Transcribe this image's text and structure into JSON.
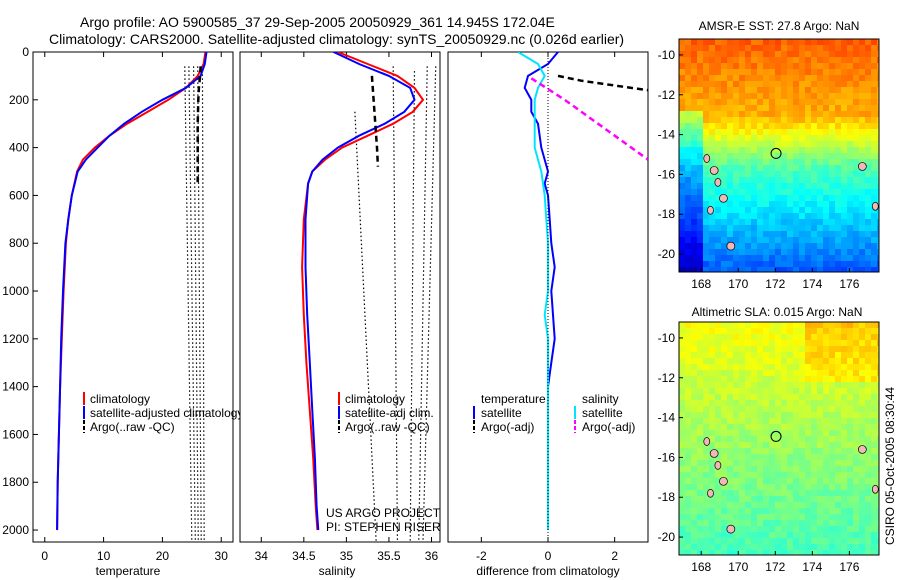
{
  "header": {
    "line1": "Argo profile: AO 5900585_37 29-Sep-2005 20050929_361 14.945S 172.04E",
    "line2": "Climatology: CARS2000. Satellite-adjusted climatology: synTS_20050929.nc (0.026d earlier)"
  },
  "side_stamp": "CSIRO 05-Oct-2005 08:30:44",
  "colors": {
    "climatology": "#ff0000",
    "satellite": "#0000ff",
    "argo": "#000000",
    "sat_salinity": "#00e5ff",
    "argo_salinity_adj": "#ff00ff"
  },
  "chart_data": [
    {
      "type": "line",
      "xlabel": "temperature",
      "ylabel": "",
      "xlim": [
        -2,
        32
      ],
      "ylim": [
        2050,
        0
      ],
      "x_ticks": [
        0,
        10,
        20,
        30
      ],
      "y_ticks": [
        0,
        200,
        400,
        600,
        800,
        1000,
        1200,
        1400,
        1600,
        1800,
        2000
      ],
      "legend": [
        "climatology",
        "satellite-adjusted climatology",
        "Argo(..raw -QC)"
      ],
      "legend_location": "lower-right",
      "series": [
        {
          "name": "climatology",
          "style": "solid",
          "color": "#ff0000",
          "x": [
            27.3,
            27.0,
            26.0,
            24.0,
            21.0,
            17.5,
            14.0,
            11.0,
            8.5,
            6.5,
            5.5,
            4.6,
            4.0,
            3.6,
            3.2,
            2.9,
            2.6,
            2.4,
            2.2,
            2.1
          ],
          "y": [
            0,
            50,
            100,
            150,
            200,
            250,
            300,
            350,
            400,
            450,
            500,
            600,
            700,
            800,
            1000,
            1200,
            1400,
            1600,
            1800,
            2000
          ]
        },
        {
          "name": "satellite-adjusted climatology",
          "style": "solid",
          "color": "#0000ff",
          "x": [
            27.5,
            27.2,
            26.5,
            24.0,
            20.0,
            16.5,
            13.5,
            11.0,
            9.0,
            7.0,
            5.6,
            4.6,
            4.0,
            3.5,
            3.1,
            2.8,
            2.6,
            2.4,
            2.2,
            2.1
          ],
          "y": [
            0,
            50,
            100,
            150,
            200,
            250,
            300,
            350,
            400,
            450,
            500,
            600,
            700,
            800,
            1000,
            1200,
            1400,
            1600,
            1800,
            2000
          ]
        },
        {
          "name": "Argo(..raw -QC)",
          "style": "dashed",
          "color": "#000000",
          "x": [
            26.5,
            26.4,
            26.2,
            26.1,
            26.0,
            26.0,
            26.0,
            26.0
          ],
          "y": [
            60,
            100,
            150,
            200,
            300,
            400,
            500,
            560
          ]
        }
      ],
      "dotted_reference_lines": [
        {
          "x1": 23.8,
          "y1": 60,
          "x2": 25.0,
          "y2": 2050
        },
        {
          "x1": 24.5,
          "y1": 60,
          "x2": 25.6,
          "y2": 2050
        },
        {
          "x1": 25.3,
          "y1": 60,
          "x2": 26.1,
          "y2": 2050
        },
        {
          "x1": 26.0,
          "y1": 60,
          "x2": 26.6,
          "y2": 2050
        },
        {
          "x1": 26.8,
          "y1": 60,
          "x2": 27.1,
          "y2": 2050
        }
      ]
    },
    {
      "type": "line",
      "xlabel": "salinity",
      "ylabel": "",
      "xlim": [
        33.75,
        36.1
      ],
      "ylim": [
        2050,
        0
      ],
      "x_ticks": [
        34,
        34.5,
        35,
        35.5,
        36
      ],
      "legend": [
        "climatology",
        "satellite-adj clim.",
        "Argo(..raw -QC)"
      ],
      "legend_location": "lower-right",
      "annotation": [
        "US ARGO PROJECT",
        "PI: STEPHEN RISER"
      ],
      "series": [
        {
          "name": "climatology",
          "style": "solid",
          "color": "#ff0000",
          "x": [
            34.9,
            35.25,
            35.6,
            35.8,
            35.9,
            35.78,
            35.55,
            35.25,
            34.95,
            34.75,
            34.6,
            34.55,
            34.5,
            34.48,
            34.5,
            34.53,
            34.57,
            34.61,
            34.64,
            34.66
          ],
          "y": [
            0,
            50,
            100,
            150,
            200,
            250,
            300,
            350,
            400,
            450,
            500,
            550,
            700,
            900,
            1100,
            1300,
            1500,
            1700,
            1900,
            2000
          ]
        },
        {
          "name": "satellite-adjusted climatology",
          "style": "solid",
          "color": "#0000ff",
          "x": [
            34.85,
            35.15,
            35.5,
            35.75,
            35.8,
            35.68,
            35.45,
            35.15,
            34.9,
            34.72,
            34.6,
            34.55,
            34.52,
            34.52,
            34.54,
            34.57,
            34.6,
            34.63,
            34.65,
            34.67
          ],
          "y": [
            0,
            50,
            100,
            150,
            200,
            250,
            300,
            350,
            400,
            450,
            500,
            550,
            700,
            900,
            1100,
            1300,
            1500,
            1700,
            1900,
            2000
          ]
        },
        {
          "name": "Argo(..raw -QC)",
          "style": "dashed",
          "color": "#000000",
          "x": [
            35.3,
            35.32,
            35.34,
            35.36,
            35.37
          ],
          "y": [
            100,
            200,
            300,
            400,
            480
          ]
        }
      ],
      "dotted_reference_lines": [
        {
          "x1": 35.55,
          "y1": 60,
          "x2": 35.6,
          "y2": 2050
        },
        {
          "x1": 35.1,
          "y1": 250,
          "x2": 35.35,
          "y2": 2050
        },
        {
          "x1": 35.8,
          "y1": 80,
          "x2": 35.75,
          "y2": 2050
        },
        {
          "x1": 35.95,
          "y1": 60,
          "x2": 35.85,
          "y2": 2050
        },
        {
          "x1": 36.05,
          "y1": 60,
          "x2": 35.9,
          "y2": 2050
        }
      ]
    },
    {
      "type": "line",
      "xlabel": "difference from climatology",
      "ylabel": "",
      "xlim": [
        -3.0,
        3.0
      ],
      "ylim": [
        2050,
        0
      ],
      "x_ticks": [
        -2,
        0,
        2
      ],
      "legend": [
        "temperature",
        "satellite",
        "Argo(-adj)",
        "salinity",
        "satellite",
        "Argo(-adj)"
      ],
      "legend_location": "lower",
      "series": [
        {
          "name": "temperature satellite",
          "style": "solid",
          "color": "#0000ff",
          "x": [
            0.3,
            0.0,
            -0.6,
            -0.7,
            -0.5,
            -0.5,
            -0.3,
            -0.2,
            0.0,
            -0.1,
            0.0,
            0.05,
            0.1,
            0.2,
            0.1,
            0.2,
            0.1,
            0.0,
            0.0,
            0.0,
            0.0
          ],
          "y": [
            0,
            50,
            100,
            150,
            200,
            250,
            300,
            400,
            500,
            550,
            600,
            700,
            800,
            900,
            1000,
            1200,
            1300,
            1400,
            1600,
            1800,
            2000
          ]
        },
        {
          "name": "salinity satellite",
          "style": "solid",
          "color": "#00e5ff",
          "x": [
            -0.9,
            -0.3,
            -0.1,
            -0.3,
            -0.4,
            -0.4,
            -0.4,
            -0.2,
            -0.1,
            -0.05,
            0.0,
            0.0,
            0.0,
            -0.1,
            0.0,
            0.0,
            0.0
          ],
          "y": [
            0,
            50,
            100,
            150,
            200,
            300,
            400,
            500,
            600,
            700,
            800,
            900,
            1000,
            1100,
            1200,
            1500,
            2000
          ]
        },
        {
          "name": "Argo(-adj) temperature",
          "style": "dashed",
          "color": "#000000",
          "x": [
            0.3,
            1.0,
            2.0,
            3.0
          ],
          "y": [
            100,
            120,
            140,
            160
          ]
        },
        {
          "name": "Argo(-adj) salinity",
          "style": "dashed",
          "color": "#ff00ff",
          "x": [
            -0.5,
            0.5,
            1.5,
            2.5,
            3.0
          ],
          "y": [
            110,
            200,
            300,
            400,
            450
          ]
        }
      ]
    },
    {
      "type": "heatmap",
      "title": "AMSR-E SST: 27.8  Argo: NaN",
      "x_ticks": [
        168,
        170,
        172,
        174,
        176
      ],
      "y_ticks": [
        -10,
        -12,
        -14,
        -16,
        -18,
        -20
      ],
      "xlim": [
        166.8,
        177.6
      ],
      "ylim": [
        -20.9,
        -9.2
      ],
      "argo_location": {
        "lon": 172.04,
        "lat": -14.945
      },
      "colormap": "jet"
    },
    {
      "type": "heatmap",
      "title": "Altimetric SLA: 0.015  Argo: NaN",
      "x_ticks": [
        168,
        170,
        172,
        174,
        176
      ],
      "y_ticks": [
        -10,
        -12,
        -14,
        -16,
        -18,
        -20
      ],
      "xlim": [
        166.8,
        177.6
      ],
      "ylim": [
        -20.9,
        -9.2
      ],
      "argo_location": {
        "lon": 172.04,
        "lat": -14.945
      },
      "colormap": "jet"
    }
  ]
}
